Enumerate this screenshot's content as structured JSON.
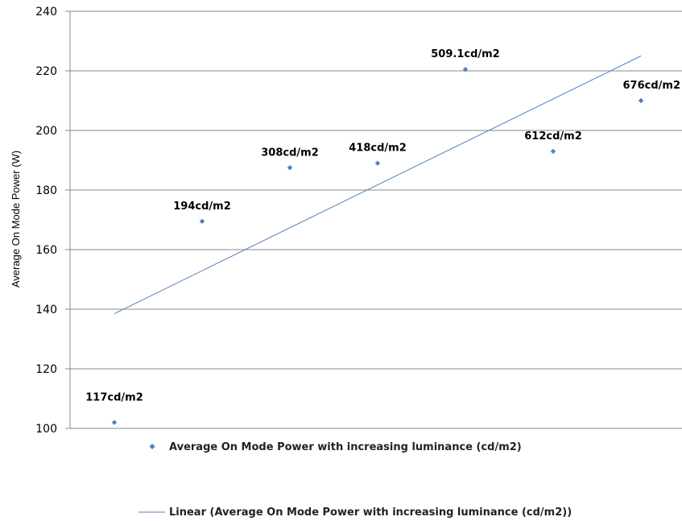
{
  "chart_data": {
    "type": "scatter",
    "ylabel": "Average On Mode Power (W)",
    "xlabel": "",
    "ylim": [
      100,
      240
    ],
    "yticks": [
      100,
      120,
      140,
      160,
      180,
      200,
      220,
      240
    ],
    "grid": true,
    "legend_position": "bottom",
    "colors": {
      "marker": "#4f81bd",
      "trend": "#4f81bd",
      "grid": "#888888"
    },
    "series": [
      {
        "name": "Average On Mode Power with increasing luminance (cd/m2)",
        "marker": "diamond",
        "points": [
          {
            "x": 1,
            "y": 102,
            "label": "117cd/m2"
          },
          {
            "x": 2,
            "y": 169.5,
            "label": "194cd/m2"
          },
          {
            "x": 3,
            "y": 187.5,
            "label": "308cd/m2"
          },
          {
            "x": 4,
            "y": 189,
            "label": "418cd/m2"
          },
          {
            "x": 5,
            "y": 220.5,
            "label": "509.1cd/m2"
          },
          {
            "x": 6,
            "y": 193,
            "label": "612cd/m2"
          },
          {
            "x": 7,
            "y": 210,
            "label": "676cd/m2"
          }
        ]
      }
    ],
    "trendline": {
      "name": "Linear (Average On Mode Power with increasing luminance (cd/m2))",
      "type": "linear",
      "start": {
        "x": 1,
        "y": 138.5
      },
      "end": {
        "x": 7,
        "y": 225
      }
    }
  }
}
